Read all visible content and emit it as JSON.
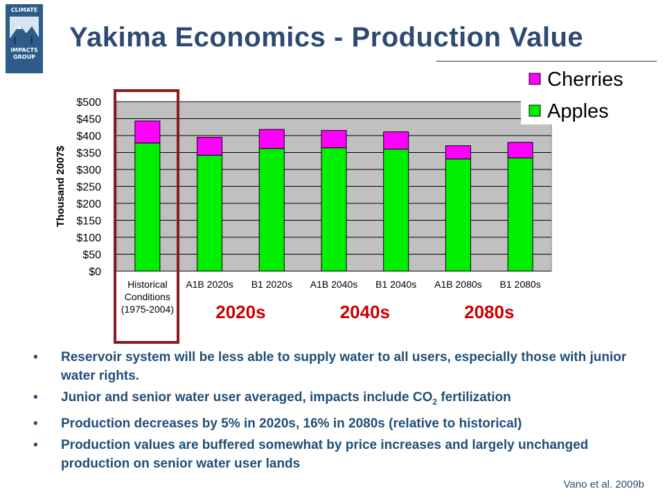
{
  "slide": {
    "title": "Yakima Economics - Production Value",
    "logo": {
      "line1": "CLIMATE",
      "line2": "IMPACTS",
      "line3": "GROUP"
    },
    "citation": "Vano et al. 2009b",
    "bullets": [
      {
        "text": "Reservoir system will be less able to supply water to all users, especially those with junior water rights."
      },
      {
        "pre": "Junior and senior water user averaged, impacts include CO",
        "sub": "2",
        "post": " fertilization"
      },
      {
        "text": "Production decreases by 5% in 2020s, 16% in 2080s (relative to historical)"
      },
      {
        "text": "Production values are buffered somewhat by price increases and largely unchanged production on senior water user lands"
      }
    ]
  },
  "chart_data": {
    "type": "bar",
    "stacked": true,
    "categories": [
      "Historical Conditions (1975-2004)",
      "A1B 2020s",
      "B1 2020s",
      "A1B 2040s",
      "B1 2040s",
      "A1B 2080s",
      "B1 2080s"
    ],
    "category_lines": [
      [
        "Historical",
        "Conditions",
        "(1975-2004)"
      ],
      [
        "A1B 2020s"
      ],
      [
        "B1 2020s"
      ],
      [
        "A1B 2040s"
      ],
      [
        "B1 2040s"
      ],
      [
        "A1B 2080s"
      ],
      [
        "B1 2080s"
      ]
    ],
    "series": [
      {
        "name": "Apples",
        "color": "#00ee00",
        "values": [
          378,
          342,
          362,
          364,
          360,
          331,
          334
        ]
      },
      {
        "name": "Cherries",
        "color": "#ff00ff",
        "values": [
          65,
          53,
          56,
          51,
          51,
          39,
          46
        ]
      }
    ],
    "ylabel": "Thousand 2007$",
    "ylim": [
      0,
      500
    ],
    "yticks": [
      0,
      50,
      100,
      150,
      200,
      250,
      300,
      350,
      400,
      450,
      500
    ],
    "ytick_labels": [
      "$0",
      "$50",
      "$100",
      "$150",
      "$200",
      "$250",
      "$300",
      "$350",
      "$400",
      "$450",
      "$500"
    ],
    "grid": true,
    "legend_position": "top-right",
    "legend_order": [
      "Cherries",
      "Apples"
    ],
    "period_labels": [
      "2020s",
      "2040s",
      "2080s"
    ],
    "period_color": "#cc0000",
    "highlight_color": "#8b1a1a",
    "plot_background": "#c0c0c0"
  }
}
